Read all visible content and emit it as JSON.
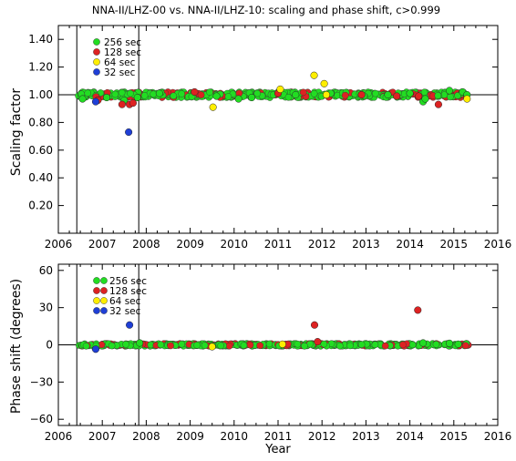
{
  "chart_data": [
    {
      "type": "scatter",
      "title": "NNA-II/LHZ-00  vs.  NNA-II/LHZ-10:  scaling  and  phase  shift,  c>0.999",
      "xlabel": "",
      "ylabel": "Scaling  factor",
      "xlim": [
        2006,
        2016
      ],
      "ylim": [
        0,
        1.5
      ],
      "xticks": [
        "2006",
        "2007",
        "2008",
        "2009",
        "2010",
        "2011",
        "2012",
        "2013",
        "2014",
        "2015",
        "2016"
      ],
      "yticks": [
        "0.20",
        "0.40",
        "0.60",
        "0.80",
        "1.00",
        "1.20",
        "1.40"
      ],
      "reference_line": 1.0,
      "vertical_lines": [
        2006.42,
        2007.83
      ],
      "legend": [
        "256 sec",
        "128 sec",
        "64 sec",
        "32 sec"
      ],
      "legend_placement": "top-left",
      "band": {
        "x_start": 2006.45,
        "x_end": 2015.35,
        "center": 1.0,
        "spread": 0.02
      },
      "series": [
        {
          "name": "256 sec",
          "color": "#22dd22",
          "points": [
            [
              2006.55,
              0.97
            ],
            [
              2007.1,
              0.98
            ],
            [
              2007.5,
              0.96
            ],
            [
              2007.8,
              0.98
            ],
            [
              2008.3,
              1.01
            ],
            [
              2009.6,
              0.99
            ],
            [
              2010.1,
              0.97
            ],
            [
              2010.4,
              0.98
            ],
            [
              2011.4,
              1.0
            ],
            [
              2012.2,
              1.01
            ],
            [
              2013.5,
              1.0
            ],
            [
              2014.0,
              1.01
            ],
            [
              2014.3,
              0.95
            ],
            [
              2014.35,
              0.97
            ],
            [
              2014.9,
              1.03
            ],
            [
              2015.2,
              1.02
            ],
            [
              2015.3,
              1.0
            ]
          ]
        },
        {
          "name": "128 sec",
          "color": "#dd2222",
          "points": [
            [
              2006.9,
              0.96
            ],
            [
              2007.45,
              0.93
            ],
            [
              2007.62,
              0.93
            ],
            [
              2007.7,
              0.94
            ],
            [
              2009.1,
              1.02
            ],
            [
              2011.0,
              1.01
            ],
            [
              2012.9,
              1.0
            ],
            [
              2013.7,
              0.99
            ],
            [
              2014.2,
              0.99
            ],
            [
              2014.65,
              0.93
            ]
          ]
        },
        {
          "name": "64 sec",
          "color": "#ffee00",
          "points": [
            [
              2009.52,
              0.91
            ],
            [
              2011.05,
              1.04
            ],
            [
              2011.82,
              1.14
            ],
            [
              2012.05,
              1.08
            ],
            [
              2012.1,
              1.0
            ],
            [
              2015.3,
              0.97
            ]
          ]
        },
        {
          "name": "32 sec",
          "color": "#1f3fd6",
          "points": [
            [
              2006.85,
              0.95
            ],
            [
              2007.6,
              0.73
            ]
          ]
        }
      ]
    },
    {
      "type": "scatter",
      "xlabel": "Year",
      "ylabel": "Phase  shift  (degrees)",
      "xlim": [
        2006,
        2016
      ],
      "ylim": [
        -65,
        65
      ],
      "xticks": [
        "2006",
        "2007",
        "2008",
        "2009",
        "2010",
        "2011",
        "2012",
        "2013",
        "2014",
        "2015",
        "2016"
      ],
      "yticks": [
        "60",
        "30",
        "0",
        "−30",
        "−60"
      ],
      "reference_line": 0,
      "vertical_lines": [
        2006.42,
        2007.83
      ],
      "legend": [
        "256 sec",
        "128 sec",
        "64 sec",
        "32 sec"
      ],
      "legend_placement": "top-left",
      "band": {
        "x_start": 2006.45,
        "x_end": 2015.35,
        "center": 0,
        "spread": 1.0
      },
      "series": [
        {
          "name": "256 sec",
          "color": "#22dd22",
          "points": [
            [
              2007.85,
              1.5
            ],
            [
              2014.3,
              1.5
            ],
            [
              2014.9,
              1.2
            ],
            [
              2015.1,
              0.5
            ]
          ]
        },
        {
          "name": "128 sec",
          "color": "#dd2222",
          "points": [
            [
              2011.83,
              16
            ],
            [
              2014.18,
              28
            ],
            [
              2011.9,
              2.5
            ]
          ]
        },
        {
          "name": "64 sec",
          "color": "#ffee00",
          "points": [
            [
              2009.5,
              -1.5
            ],
            [
              2011.1,
              0.5
            ]
          ]
        },
        {
          "name": "32 sec",
          "color": "#1f3fd6",
          "points": [
            [
              2006.85,
              -3.5
            ],
            [
              2007.62,
              16
            ]
          ]
        }
      ]
    }
  ]
}
